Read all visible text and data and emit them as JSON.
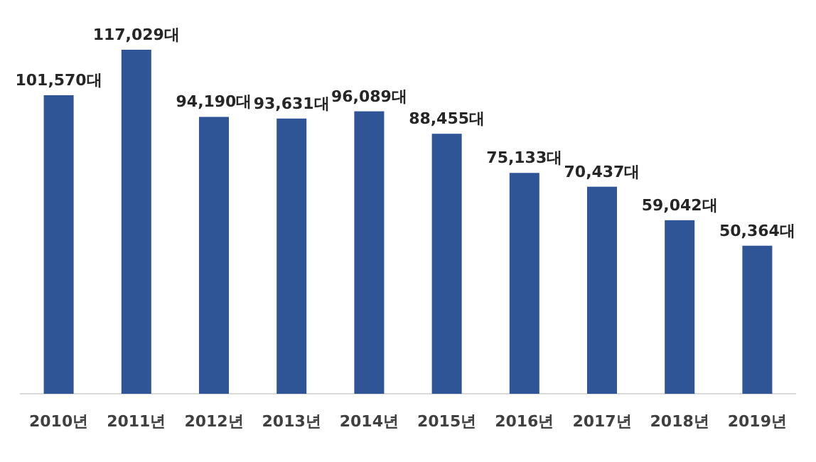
{
  "chart_data": {
    "type": "bar",
    "categories": [
      "2010년",
      "2011년",
      "2012년",
      "2013년",
      "2014년",
      "2015년",
      "2016년",
      "2017년",
      "2018년",
      "2019년"
    ],
    "values": [
      101570,
      117029,
      94190,
      93631,
      96089,
      88455,
      75133,
      70437,
      59042,
      50364
    ],
    "value_labels": [
      "101,570대",
      "117,029대",
      "94,190대",
      "93,631대",
      "96,089대",
      "88,455대",
      "75,133대",
      "70,437대",
      "59,042대",
      "50,364대"
    ],
    "color": "#2f5597"
  }
}
